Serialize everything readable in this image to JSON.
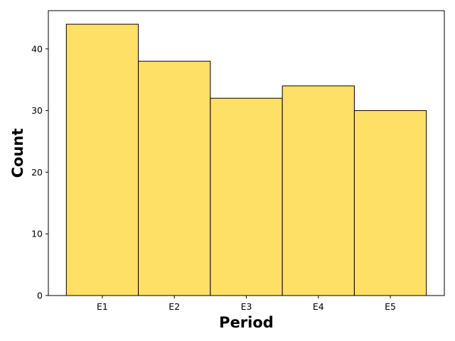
{
  "chart_data": {
    "type": "bar",
    "title": "",
    "xlabel": "Period",
    "ylabel": "Count",
    "categories": [
      "E1",
      "E2",
      "E3",
      "E4",
      "E5"
    ],
    "values": [
      44,
      38,
      32,
      34,
      30
    ],
    "ylim": [
      0,
      46.2
    ],
    "yticks": [
      0,
      10,
      20,
      30,
      40
    ],
    "bar_color": "#FFE066",
    "edge_color": "#000000",
    "grid": false,
    "legend": "none"
  }
}
